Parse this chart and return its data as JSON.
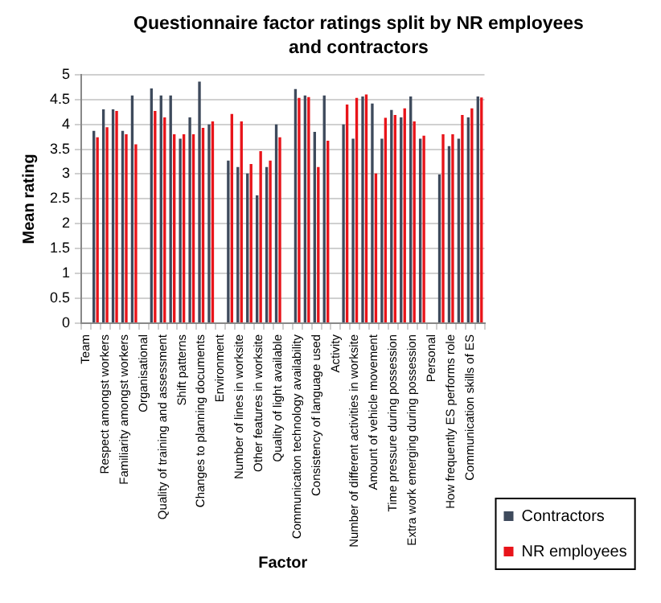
{
  "chart_data": {
    "type": "bar",
    "title": "Questionnaire factor ratings split by NR employees and contractors",
    "xlabel": "Factor",
    "ylabel": "Mean rating",
    "categories": [
      "Team",
      null,
      "Respect amongst workers",
      null,
      "Familiarity amongst workers",
      null,
      "Organisational",
      null,
      "Quality of training and assessment",
      null,
      "Shift patterns",
      null,
      "Changes to planning documents",
      null,
      "Environment",
      null,
      "Number of lines in worksite",
      null,
      "Other features in worksite",
      null,
      "Quality of light available",
      null,
      "Communication technology availability",
      null,
      "Consistency of language used",
      null,
      "Activity",
      null,
      "Number of different activities in worksite",
      null,
      "Amount of vehicle movement",
      null,
      "Time pressure during possession",
      null,
      "Extra work emerging during possession",
      null,
      "Personal",
      null,
      "How frequently ES performs role",
      null,
      "Communication skills of ES",
      null
    ],
    "series": [
      {
        "name": "Contractors",
        "color": "#3e4a5c",
        "values": [
          null,
          3.87,
          4.3,
          4.3,
          3.87,
          4.58,
          null,
          4.72,
          4.58,
          4.58,
          3.71,
          4.14,
          4.86,
          4.0,
          null,
          3.27,
          3.14,
          3.01,
          2.57,
          3.14,
          4.0,
          null,
          4.71,
          4.58,
          3.85,
          4.58,
          null,
          4.0,
          3.71,
          4.56,
          4.42,
          3.71,
          4.29,
          4.14,
          4.56,
          3.71,
          null,
          2.99,
          3.56,
          3.71,
          4.14,
          4.56
        ]
      },
      {
        "name": "NR employees",
        "color": "#e8141a",
        "values": [
          null,
          3.74,
          3.94,
          4.27,
          3.8,
          3.6,
          null,
          4.27,
          4.14,
          3.8,
          3.8,
          3.8,
          3.93,
          4.06,
          null,
          4.21,
          4.06,
          3.2,
          3.46,
          3.27,
          3.74,
          null,
          4.53,
          4.55,
          3.14,
          3.67,
          null,
          4.4,
          4.53,
          4.6,
          3.01,
          4.13,
          4.19,
          4.32,
          4.06,
          3.77,
          null,
          3.8,
          3.8,
          4.19,
          4.32,
          4.54
        ]
      }
    ],
    "ylim": [
      0,
      5
    ],
    "yticks": [
      0,
      0.5,
      1,
      1.5,
      2,
      2.5,
      3,
      3.5,
      4,
      4.5,
      5
    ],
    "grid": "y",
    "legend": "right"
  }
}
